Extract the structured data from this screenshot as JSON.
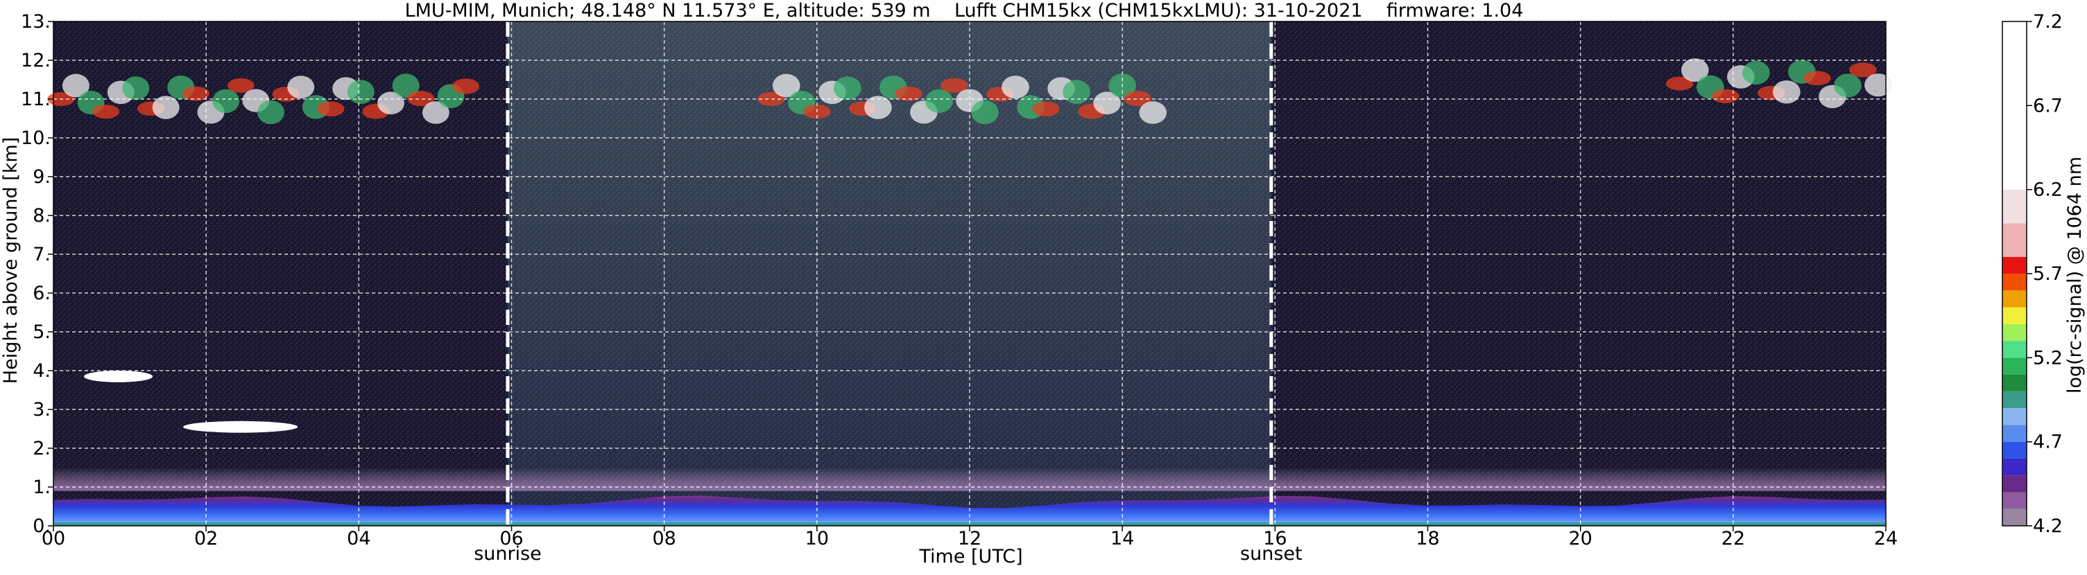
{
  "chart_data": {
    "type": "heatmap",
    "title": "LMU-MIM, Munich; 48.148° N 11.573° E, altitude: 539 m    Lufft CHM15kx (CHM15kxLMU): 31-10-2021    firmware: 1.04",
    "xlabel": "Time [UTC]",
    "ylabel": "Height above ground [km]",
    "xlim": [
      0,
      24
    ],
    "ylim": [
      0,
      13
    ],
    "x_ticks": [
      0,
      2,
      4,
      6,
      8,
      10,
      12,
      14,
      16,
      18,
      20,
      22,
      24
    ],
    "x_tick_labels": [
      "00",
      "02",
      "04",
      "06",
      "08",
      "10",
      "12",
      "14",
      "16",
      "18",
      "20",
      "22",
      "24"
    ],
    "y_ticks": [
      0,
      1,
      2,
      3,
      4,
      5,
      6,
      7,
      8,
      9,
      10,
      11,
      12,
      13
    ],
    "y_tick_labels": [
      "0.",
      "1.",
      "2.",
      "3.",
      "4.",
      "5.",
      "6.",
      "7.",
      "8.",
      "9.",
      "10.",
      "11.",
      "12.",
      "13."
    ],
    "grid": true,
    "markers": [
      {
        "x": 5.95,
        "label": "sunrise"
      },
      {
        "x": 15.95,
        "label": "sunset"
      }
    ],
    "colorbar": {
      "label": "log(rc-signal) @ 1064 nm",
      "range": [
        4.2,
        7.2
      ],
      "ticks": [
        4.2,
        4.7,
        5.2,
        5.7,
        6.2,
        6.7,
        7.2
      ],
      "tick_labels": [
        "4.2",
        "4.7",
        "5.2",
        "5.7",
        "6.2",
        "6.7",
        "7.2"
      ],
      "segments": [
        {
          "from": 4.2,
          "to": 4.3,
          "color": "#9a86a0"
        },
        {
          "from": 4.3,
          "to": 4.4,
          "color": "#8f5aa0"
        },
        {
          "from": 4.4,
          "to": 4.5,
          "color": "#6a2a8a"
        },
        {
          "from": 4.5,
          "to": 4.6,
          "color": "#3c28c8"
        },
        {
          "from": 4.6,
          "to": 4.7,
          "color": "#2c55e8"
        },
        {
          "from": 4.7,
          "to": 4.8,
          "color": "#5a8cf0"
        },
        {
          "from": 4.8,
          "to": 4.9,
          "color": "#8cb4f0"
        },
        {
          "from": 4.9,
          "to": 5.0,
          "color": "#3c9c8c"
        },
        {
          "from": 5.0,
          "to": 5.1,
          "color": "#1e8c3c"
        },
        {
          "from": 5.1,
          "to": 5.2,
          "color": "#2cb45a"
        },
        {
          "from": 5.2,
          "to": 5.3,
          "color": "#50e08c"
        },
        {
          "from": 5.3,
          "to": 5.4,
          "color": "#a0f05a"
        },
        {
          "from": 5.4,
          "to": 5.5,
          "color": "#f0f03c"
        },
        {
          "from": 5.5,
          "to": 5.6,
          "color": "#f0a000"
        },
        {
          "from": 5.6,
          "to": 5.7,
          "color": "#f05000"
        },
        {
          "from": 5.7,
          "to": 5.8,
          "color": "#e81414"
        },
        {
          "from": 5.8,
          "to": 6.0,
          "color": "#f0b4b4"
        },
        {
          "from": 6.0,
          "to": 6.2,
          "color": "#f0e0e0"
        },
        {
          "from": 6.2,
          "to": 7.2,
          "color": "#ffffff"
        }
      ]
    },
    "features": [
      {
        "kind": "boundary-layer",
        "x": [
          0,
          24
        ],
        "y": [
          0,
          0.9
        ],
        "signal": 4.6
      },
      {
        "kind": "aerosol-layer",
        "x": [
          0,
          24
        ],
        "y": [
          0.9,
          1.5
        ],
        "signal": 4.3
      },
      {
        "kind": "cirrus",
        "x": [
          0,
          5.5
        ],
        "y": [
          10.4,
          11.6
        ],
        "signal": 5.7
      },
      {
        "kind": "cirrus",
        "x": [
          9.3,
          14.5
        ],
        "y": [
          10.0,
          12.0
        ],
        "signal": 6.0
      },
      {
        "kind": "cirrus",
        "x": [
          21.2,
          24
        ],
        "y": [
          10.8,
          12.0
        ],
        "signal": 5.9
      },
      {
        "kind": "cloud",
        "x": [
          0.4,
          1.3
        ],
        "y": [
          3.7,
          4.0
        ],
        "signal": 6.5
      },
      {
        "kind": "cloud",
        "x": [
          1.7,
          3.2
        ],
        "y": [
          2.4,
          2.7
        ],
        "signal": 6.5
      }
    ]
  }
}
